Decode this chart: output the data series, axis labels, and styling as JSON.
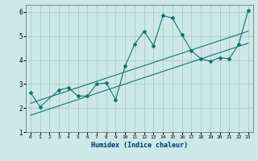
{
  "title": "",
  "xlabel": "Humidex (Indice chaleur)",
  "bg_color": "#cce8e8",
  "grid_color": "#aacccc",
  "line_color": "#1a7070",
  "xlim": [
    -0.5,
    23.5
  ],
  "ylim": [
    1,
    6.3
  ],
  "yticks": [
    1,
    2,
    3,
    4,
    5,
    6
  ],
  "xticks": [
    0,
    1,
    2,
    3,
    4,
    5,
    6,
    7,
    8,
    9,
    10,
    11,
    12,
    13,
    14,
    15,
    16,
    17,
    18,
    19,
    20,
    21,
    22,
    23
  ],
  "line1_x": [
    0,
    1,
    3,
    4,
    5,
    6,
    7,
    8,
    9,
    10,
    11,
    12,
    13,
    14,
    15,
    16,
    17,
    18,
    19,
    20,
    21,
    22,
    23
  ],
  "line1_y": [
    2.65,
    2.05,
    2.75,
    2.85,
    2.5,
    2.5,
    3.0,
    3.05,
    2.35,
    3.75,
    4.65,
    5.2,
    4.6,
    5.85,
    5.75,
    5.05,
    4.4,
    4.05,
    3.95,
    4.1,
    4.05,
    4.65,
    6.05
  ],
  "line2_x": [
    0,
    23
  ],
  "line2_y": [
    1.7,
    4.7
  ],
  "line3_x": [
    0,
    23
  ],
  "line3_y": [
    2.2,
    5.2
  ]
}
